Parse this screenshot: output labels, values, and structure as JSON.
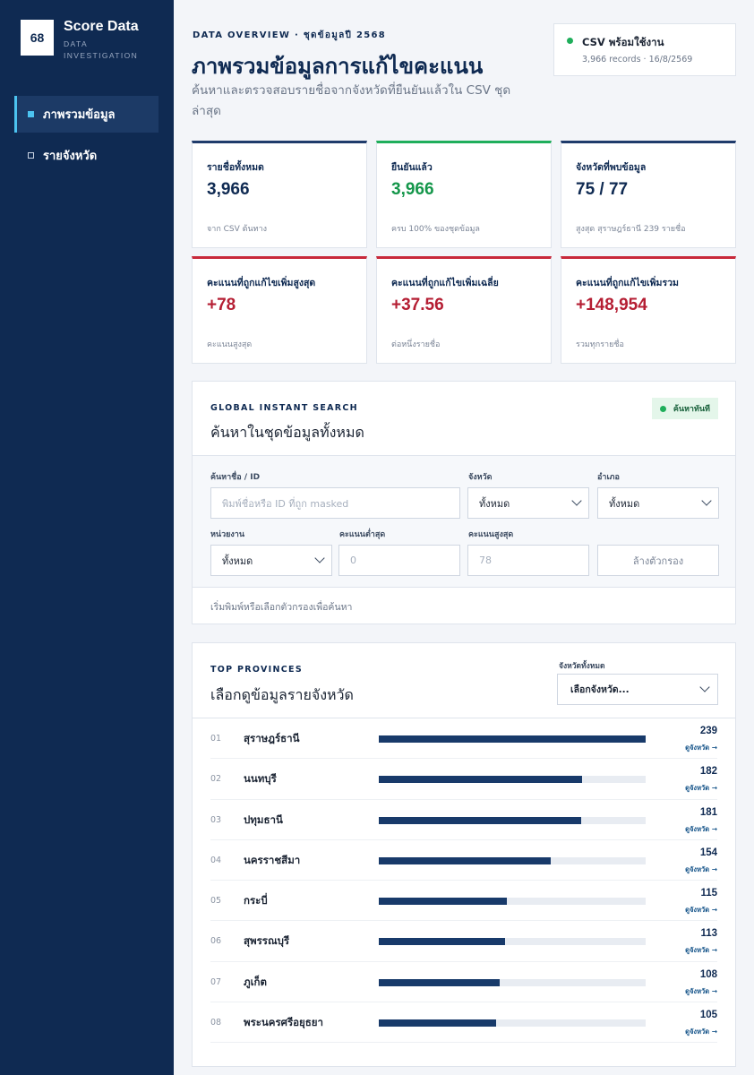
{
  "brand": {
    "logo": "68",
    "title": "Score Data",
    "subtitle": "DATA INVESTIGATION"
  },
  "nav": {
    "items": [
      {
        "label": "ภาพรวมข้อมูล",
        "active": true
      },
      {
        "label": "รายจังหวัด",
        "active": false
      }
    ]
  },
  "header": {
    "eyebrow": "DATA OVERVIEW · ชุดข้อมูลปี 2568",
    "title": "ภาพรวมข้อมูลการแก้ไขคะแนน",
    "subtitle": "ค้นหาและตรวจสอบรายชื่อจากจังหวัดที่ยืนยันแล้วใน CSV ชุดล่าสุด"
  },
  "status": {
    "title": "CSV พร้อมใช้งาน",
    "meta": "3,966 records · 16/8/2569",
    "color": "#1fae5b"
  },
  "stats": [
    {
      "label": "รายชื่อทั้งหมด",
      "value": "3,966",
      "note": "จาก CSV ต้นทาง",
      "tone": "navy"
    },
    {
      "label": "ยืนยันแล้ว",
      "value": "3,966",
      "note": "ครบ 100% ของชุดข้อมูล",
      "tone": "green"
    },
    {
      "label": "จังหวัดที่พบข้อมูล",
      "value": "75 / 77",
      "note": "สูงสุด สุราษฎร์ธานี 239 รายชื่อ",
      "tone": "navy"
    },
    {
      "label": "คะแนนที่ถูกแก้ไขเพิ่มสูงสุด",
      "value": "+78",
      "note": "คะแนนสูงสุด",
      "tone": "red"
    },
    {
      "label": "คะแนนที่ถูกแก้ไขเพิ่มเฉลี่ย",
      "value": "+37.56",
      "note": "ต่อหนึ่งรายชื่อ",
      "tone": "red"
    },
    {
      "label": "คะแนนที่ถูกแก้ไขเพิ่มรวม",
      "value": "+148,954",
      "note": "รวมทุกรายชื่อ",
      "tone": "red"
    }
  ],
  "search": {
    "kicker": "GLOBAL INSTANT SEARCH",
    "title": "ค้นหาในชุดข้อมูลทั้งหมด",
    "badge": "ค้นหาทันที",
    "name_label": "ค้นหาชื่อ / ID",
    "name_placeholder": "พิมพ์ชื่อหรือ ID ที่ถูก masked",
    "province_label": "จังหวัด",
    "province_value": "ทั้งหมด",
    "district_label": "อำเภอ",
    "district_value": "ทั้งหมด",
    "agency_label": "หน่วยงาน",
    "agency_value": "ทั้งหมด",
    "min_label": "คะแนนต่ำสุด",
    "min_placeholder": "0",
    "max_label": "คะแนนสูงสุด",
    "max_placeholder": "78",
    "clear_label": "ล้างตัวกรอง",
    "hint": "เริ่มพิมพ์หรือเลือกตัวกรองเพื่อค้นหา"
  },
  "provinces": {
    "kicker": "TOP PROVINCES",
    "title": "เลือกดูข้อมูลรายจังหวัด",
    "select_label": "จังหวัดทั้งหมด",
    "select_value": "เลือกจังหวัด...",
    "link_label": "ดูจังหวัด →",
    "max": 239,
    "rows": [
      {
        "rank": "01",
        "name": "สุราษฎร์ธานี",
        "count": 239
      },
      {
        "rank": "02",
        "name": "นนทบุรี",
        "count": 182
      },
      {
        "rank": "03",
        "name": "ปทุมธานี",
        "count": 181
      },
      {
        "rank": "04",
        "name": "นครราชสีมา",
        "count": 154
      },
      {
        "rank": "05",
        "name": "กระบี่",
        "count": 115
      },
      {
        "rank": "06",
        "name": "สุพรรณบุรี",
        "count": 113
      },
      {
        "rank": "07",
        "name": "ภูเก็ต",
        "count": 108
      },
      {
        "rank": "08",
        "name": "พระนครศรีอยุธยา",
        "count": 105
      }
    ]
  }
}
